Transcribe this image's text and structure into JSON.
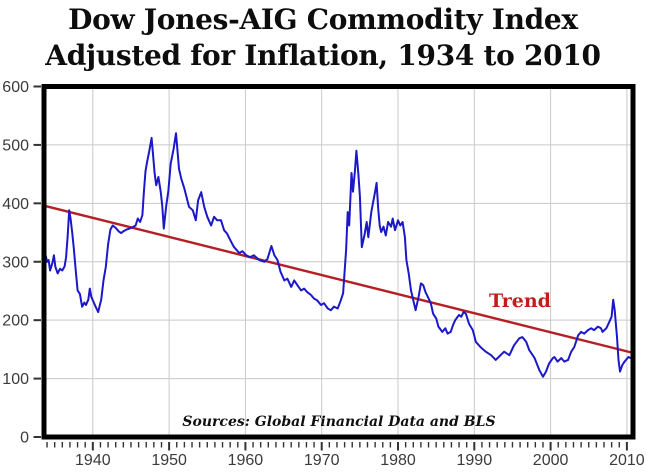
{
  "title": {
    "line1": "Dow Jones-AIG Commodity Index",
    "line2": "Adjusted for Inflation, 1934 to 2010"
  },
  "annotations": {
    "trend_label": "Trend",
    "source_note": "Sources: Global Financial Data and BLS"
  },
  "colors": {
    "series": "#1c18c8",
    "trend_line": "#b32025",
    "trend_label": "#c01d1d",
    "grid": "#c9c9c9",
    "border": "#000000",
    "tick": "#333333",
    "tick_label": "#3b3b3b",
    "background": "#ffffff",
    "title_text": "#0d0d0d"
  },
  "chart_data": {
    "type": "line",
    "title": "Dow Jones-AIG Commodity Index Adjusted for Inflation, 1934 to 2010",
    "xlabel": "",
    "ylabel": "",
    "x_domain": [
      1933.6,
      2010.8
    ],
    "y_domain": [
      0,
      600
    ],
    "x_ticks_labeled": [
      1940,
      1950,
      1960,
      1970,
      1980,
      1990,
      2000,
      2010
    ],
    "x_minor_tick_range": [
      1934,
      2010
    ],
    "x_minor_tick_interval": 1,
    "y_ticks": [
      0,
      100,
      200,
      300,
      400,
      500,
      600
    ],
    "grid": true,
    "legend_position": "none",
    "annotation_note": "Sources: Global Financial Data and BLS",
    "series": [
      {
        "name": "Dow Jones-AIG Commodity Index (inflation-adjusted)",
        "style": "data-line",
        "points": [
          [
            1933.6,
            283
          ],
          [
            1933.75,
            315
          ],
          [
            1934,
            300
          ],
          [
            1934.2,
            303
          ],
          [
            1934.4,
            285
          ],
          [
            1934.7,
            298
          ],
          [
            1934.9,
            311
          ],
          [
            1935.1,
            291
          ],
          [
            1935.4,
            280
          ],
          [
            1935.7,
            288
          ],
          [
            1936,
            285
          ],
          [
            1936.3,
            292
          ],
          [
            1936.5,
            308
          ],
          [
            1936.7,
            345
          ],
          [
            1936.9,
            388
          ],
          [
            1937.1,
            372
          ],
          [
            1937.3,
            350
          ],
          [
            1937.5,
            323
          ],
          [
            1937.8,
            280
          ],
          [
            1938,
            251
          ],
          [
            1938.3,
            245
          ],
          [
            1938.6,
            223
          ],
          [
            1938.9,
            230
          ],
          [
            1939.1,
            226
          ],
          [
            1939.4,
            235
          ],
          [
            1939.6,
            254
          ],
          [
            1939.8,
            240
          ],
          [
            1940.1,
            231
          ],
          [
            1940.4,
            222
          ],
          [
            1940.7,
            214
          ],
          [
            1940.9,
            225
          ],
          [
            1941.1,
            235
          ],
          [
            1941.4,
            268
          ],
          [
            1941.7,
            291
          ],
          [
            1942,
            330
          ],
          [
            1942.3,
            355
          ],
          [
            1942.6,
            362
          ],
          [
            1943,
            358
          ],
          [
            1943.4,
            352
          ],
          [
            1943.7,
            349
          ],
          [
            1944,
            352
          ],
          [
            1944.4,
            355
          ],
          [
            1944.8,
            357
          ],
          [
            1945.2,
            359
          ],
          [
            1945.6,
            362
          ],
          [
            1945.9,
            374
          ],
          [
            1946.2,
            368
          ],
          [
            1946.5,
            380
          ],
          [
            1946.7,
            420
          ],
          [
            1946.9,
            455
          ],
          [
            1947.1,
            470
          ],
          [
            1947.4,
            490
          ],
          [
            1947.7,
            512
          ],
          [
            1947.9,
            482
          ],
          [
            1948.1,
            452
          ],
          [
            1948.3,
            431
          ],
          [
            1948.6,
            445
          ],
          [
            1948.9,
            420
          ],
          [
            1949.1,
            395
          ],
          [
            1949.3,
            357
          ],
          [
            1949.6,
            394
          ],
          [
            1949.9,
            422
          ],
          [
            1950.2,
            468
          ],
          [
            1950.6,
            494
          ],
          [
            1950.9,
            520
          ],
          [
            1951.1,
            490
          ],
          [
            1951.3,
            459
          ],
          [
            1951.6,
            442
          ],
          [
            1952,
            425
          ],
          [
            1952.6,
            394
          ],
          [
            1953.1,
            388
          ],
          [
            1953.5,
            371
          ],
          [
            1953.8,
            405
          ],
          [
            1954.2,
            419
          ],
          [
            1954.6,
            394
          ],
          [
            1955,
            377
          ],
          [
            1955.5,
            362
          ],
          [
            1955.9,
            377
          ],
          [
            1956.3,
            371
          ],
          [
            1956.8,
            371
          ],
          [
            1957.2,
            354
          ],
          [
            1957.6,
            348
          ],
          [
            1958.1,
            335
          ],
          [
            1958.5,
            325
          ],
          [
            1959.2,
            315
          ],
          [
            1959.6,
            318
          ],
          [
            1960.1,
            311
          ],
          [
            1960.6,
            308
          ],
          [
            1961.1,
            311
          ],
          [
            1961.8,
            303
          ],
          [
            1962.5,
            300
          ],
          [
            1962.9,
            305
          ],
          [
            1963.4,
            327
          ],
          [
            1963.8,
            311
          ],
          [
            1964.2,
            303
          ],
          [
            1964.6,
            283
          ],
          [
            1965.1,
            268
          ],
          [
            1965.5,
            271
          ],
          [
            1966,
            257
          ],
          [
            1966.4,
            268
          ],
          [
            1966.8,
            260
          ],
          [
            1967.3,
            251
          ],
          [
            1967.7,
            254
          ],
          [
            1968.1,
            248
          ],
          [
            1968.6,
            243
          ],
          [
            1969,
            237
          ],
          [
            1969.4,
            234
          ],
          [
            1969.9,
            226
          ],
          [
            1970.3,
            229
          ],
          [
            1970.8,
            220
          ],
          [
            1971.2,
            217
          ],
          [
            1971.6,
            223
          ],
          [
            1972.1,
            220
          ],
          [
            1972.5,
            234
          ],
          [
            1972.8,
            246
          ],
          [
            1973.2,
            320
          ],
          [
            1973.4,
            385
          ],
          [
            1973.6,
            362
          ],
          [
            1973.9,
            452
          ],
          [
            1974.1,
            420
          ],
          [
            1974.35,
            455
          ],
          [
            1974.55,
            490
          ],
          [
            1974.8,
            452
          ],
          [
            1975,
            412
          ],
          [
            1975.25,
            325
          ],
          [
            1975.6,
            345
          ],
          [
            1975.9,
            368
          ],
          [
            1976.1,
            342
          ],
          [
            1976.5,
            385
          ],
          [
            1977,
            420
          ],
          [
            1977.2,
            435
          ],
          [
            1977.4,
            391
          ],
          [
            1977.6,
            362
          ],
          [
            1977.8,
            351
          ],
          [
            1978.1,
            360
          ],
          [
            1978.4,
            345
          ],
          [
            1978.7,
            368
          ],
          [
            1979.1,
            360
          ],
          [
            1979.3,
            374
          ],
          [
            1979.6,
            354
          ],
          [
            1980,
            371
          ],
          [
            1980.3,
            362
          ],
          [
            1980.6,
            368
          ],
          [
            1980.9,
            342
          ],
          [
            1981.1,
            303
          ],
          [
            1981.4,
            280
          ],
          [
            1981.7,
            251
          ],
          [
            1982,
            234
          ],
          [
            1982.3,
            217
          ],
          [
            1982.7,
            240
          ],
          [
            1983,
            263
          ],
          [
            1983.3,
            260
          ],
          [
            1983.6,
            248
          ],
          [
            1983.9,
            240
          ],
          [
            1984.3,
            229
          ],
          [
            1984.6,
            211
          ],
          [
            1985,
            203
          ],
          [
            1985.3,
            189
          ],
          [
            1985.8,
            180
          ],
          [
            1986.2,
            186
          ],
          [
            1986.5,
            177
          ],
          [
            1986.9,
            180
          ],
          [
            1987.2,
            191
          ],
          [
            1987.5,
            200
          ],
          [
            1988,
            209
          ],
          [
            1988.3,
            206
          ],
          [
            1988.6,
            214
          ],
          [
            1988.9,
            211
          ],
          [
            1989.3,
            194
          ],
          [
            1989.8,
            183
          ],
          [
            1990.2,
            163
          ],
          [
            1990.8,
            154
          ],
          [
            1991.5,
            146
          ],
          [
            1992.2,
            140
          ],
          [
            1992.8,
            132
          ],
          [
            1993.2,
            137
          ],
          [
            1993.9,
            146
          ],
          [
            1994.6,
            140
          ],
          [
            1995.2,
            157
          ],
          [
            1995.9,
            169
          ],
          [
            1996.3,
            171
          ],
          [
            1996.8,
            163
          ],
          [
            1997.2,
            149
          ],
          [
            1997.9,
            135
          ],
          [
            1998.5,
            115
          ],
          [
            1999,
            103
          ],
          [
            1999.4,
            112
          ],
          [
            1999.8,
            126
          ],
          [
            2000.3,
            135
          ],
          [
            2000.5,
            137
          ],
          [
            2000.9,
            129
          ],
          [
            2001.4,
            135
          ],
          [
            2001.8,
            129
          ],
          [
            2002.3,
            132
          ],
          [
            2002.7,
            146
          ],
          [
            2003.1,
            154
          ],
          [
            2003.6,
            174
          ],
          [
            2004,
            180
          ],
          [
            2004.4,
            177
          ],
          [
            2004.9,
            183
          ],
          [
            2005.3,
            186
          ],
          [
            2005.7,
            183
          ],
          [
            2006.2,
            189
          ],
          [
            2006.6,
            186
          ],
          [
            2006.8,
            180
          ],
          [
            2007.3,
            186
          ],
          [
            2007.7,
            197
          ],
          [
            2008,
            206
          ],
          [
            2008.2,
            235
          ],
          [
            2008.4,
            217
          ],
          [
            2008.7,
            171
          ],
          [
            2008.9,
            132
          ],
          [
            2009.1,
            112
          ],
          [
            2009.4,
            123
          ],
          [
            2009.7,
            129
          ],
          [
            2010.2,
            137
          ],
          [
            2010.5,
            135
          ]
        ]
      },
      {
        "name": "Trend",
        "style": "trend-line",
        "points": [
          [
            1933.6,
            396
          ],
          [
            2010.8,
            144
          ]
        ]
      }
    ]
  }
}
